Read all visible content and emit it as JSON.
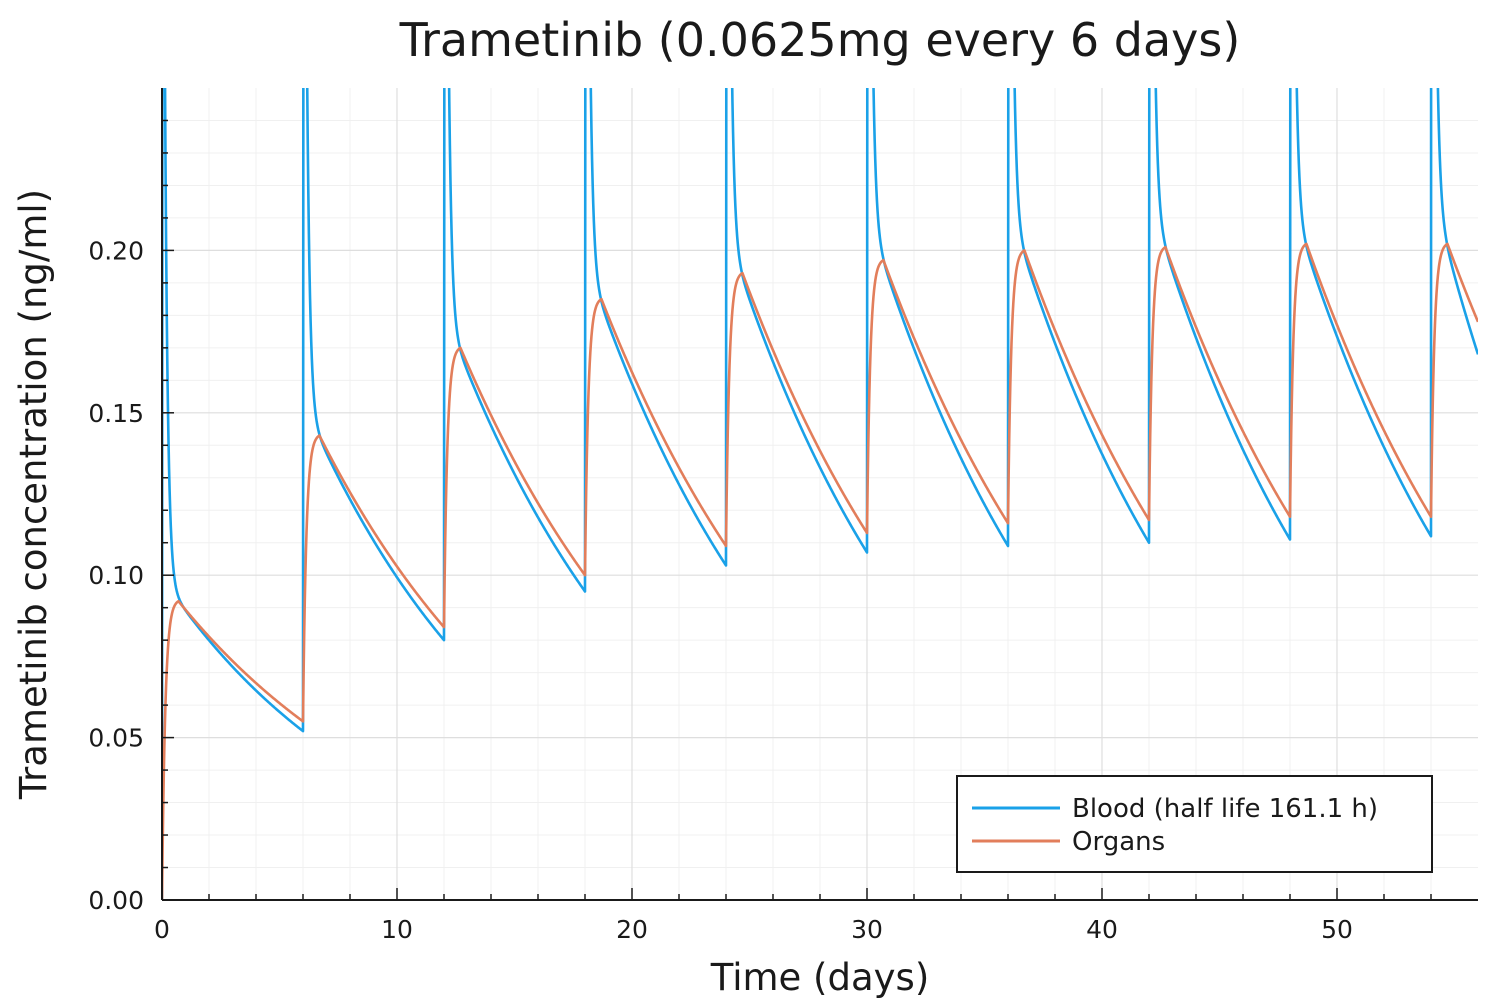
{
  "chart_data": {
    "type": "line",
    "title": "Trametinib  (0.0625mg every 6 days)",
    "xlabel": "Time (days)",
    "ylabel": "Trametinib concentration (ng/ml)",
    "xlim": [
      0,
      56
    ],
    "ylim": [
      0,
      0.25
    ],
    "x_ticks": [
      0,
      10,
      20,
      30,
      40,
      50
    ],
    "x_tick_labels": [
      "0",
      "10",
      "20",
      "30",
      "40",
      "50"
    ],
    "y_ticks": [
      0.0,
      0.05,
      0.1,
      0.15,
      0.2
    ],
    "y_tick_labels": [
      "0.00",
      "0.05",
      "0.10",
      "0.15",
      "0.20"
    ],
    "grid": true,
    "minor_grid": true,
    "legend_position": "bottom-right",
    "dose_interval_days": 6,
    "series": [
      {
        "name": "Blood (half life 161.1 h)",
        "color": "#1aa1e8",
        "dose_times": [
          0,
          6,
          12,
          18,
          24,
          30,
          36,
          42,
          48,
          54
        ],
        "post_peak_values": [
          0.092,
          0.142,
          0.168,
          0.183,
          0.191,
          0.196,
          0.198,
          0.2,
          0.2,
          0.2
        ],
        "trough_values": [
          0.052,
          0.08,
          0.095,
          0.103,
          0.107,
          0.109,
          0.11,
          0.111,
          0.112
        ],
        "end_value": 0.168,
        "spike_peak_off_scale": true
      },
      {
        "name": "Organs",
        "color": "#e27e5b",
        "dose_times": [
          0,
          6,
          12,
          18,
          24,
          30,
          36,
          42,
          48,
          54
        ],
        "peak_values": [
          0.092,
          0.143,
          0.17,
          0.185,
          0.193,
          0.197,
          0.2,
          0.201,
          0.202,
          0.202
        ],
        "trough_values": [
          0.055,
          0.084,
          0.1,
          0.109,
          0.113,
          0.116,
          0.117,
          0.118,
          0.118
        ],
        "end_value": 0.178
      }
    ]
  }
}
